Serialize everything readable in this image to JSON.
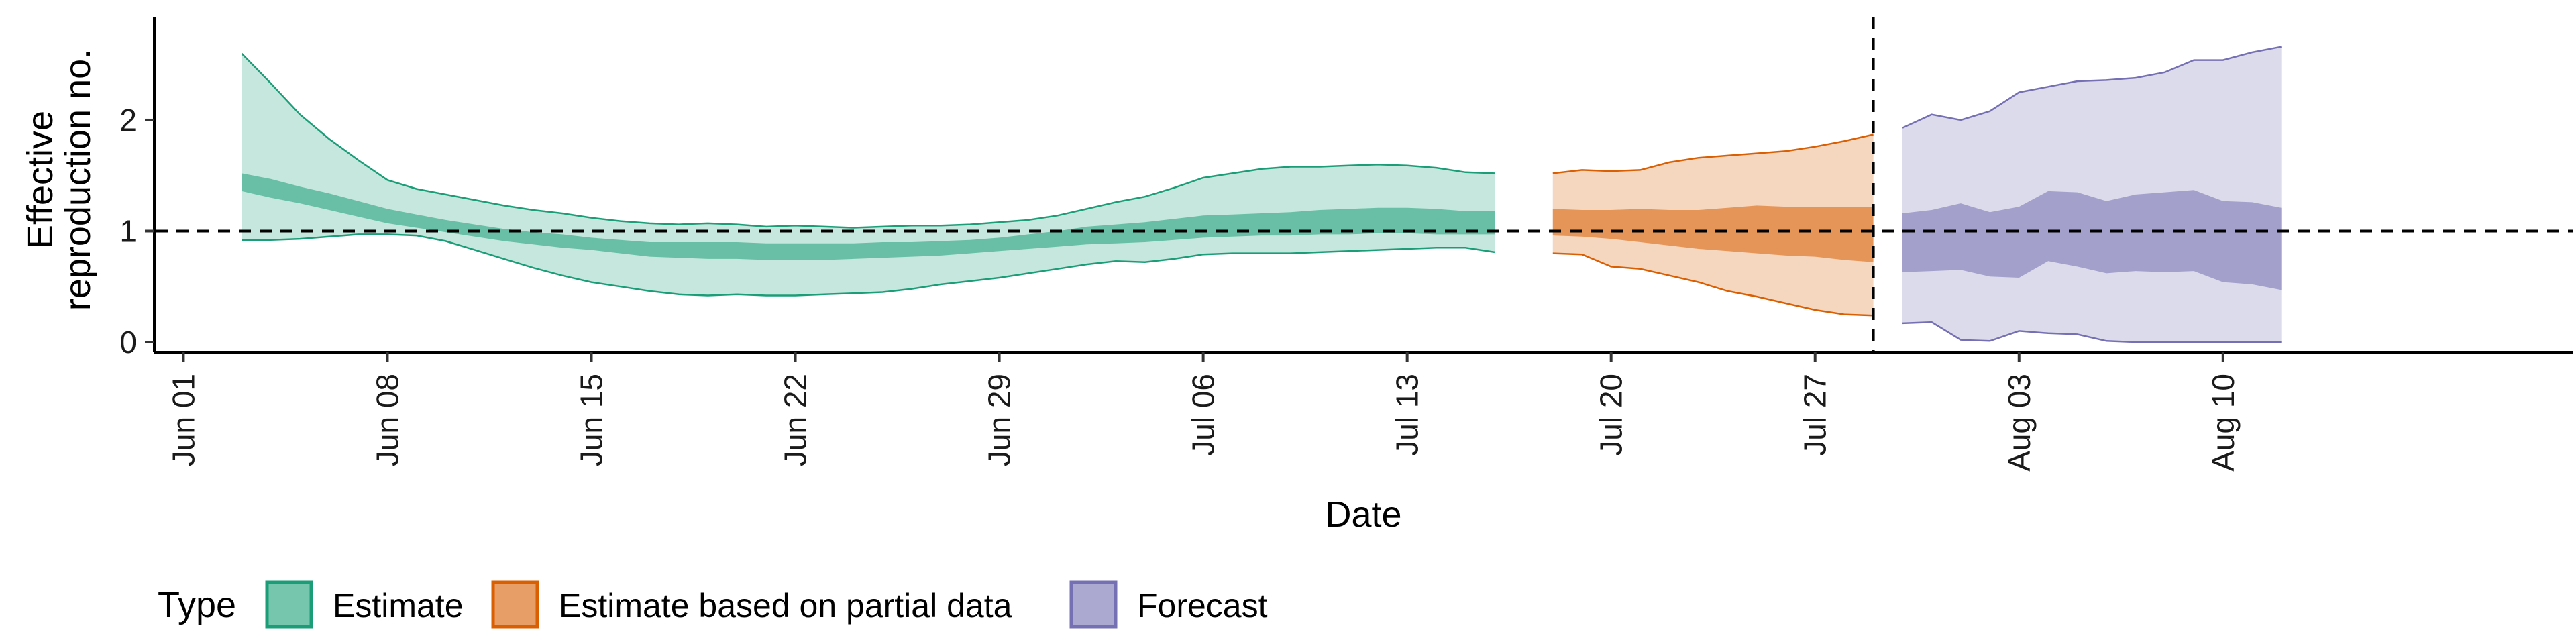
{
  "chart_data": {
    "type": "area",
    "xlabel": "Date",
    "ylabel_lines": [
      "Effective",
      "reproduction no."
    ],
    "ylim": [
      0,
      2.9
    ],
    "y_ticks": [
      0,
      1,
      2
    ],
    "x_ticks": [
      {
        "date": "2020-06-01",
        "label": "Jun 01"
      },
      {
        "date": "2020-06-08",
        "label": "Jun 08"
      },
      {
        "date": "2020-06-15",
        "label": "Jun 15"
      },
      {
        "date": "2020-06-22",
        "label": "Jun 22"
      },
      {
        "date": "2020-06-29",
        "label": "Jun 29"
      },
      {
        "date": "2020-07-06",
        "label": "Jul 06"
      },
      {
        "date": "2020-07-13",
        "label": "Jul 13"
      },
      {
        "date": "2020-07-20",
        "label": "Jul 20"
      },
      {
        "date": "2020-07-27",
        "label": "Jul 27"
      },
      {
        "date": "2020-08-03",
        "label": "Aug 03"
      },
      {
        "date": "2020-08-10",
        "label": "Aug 10"
      }
    ],
    "xlim": [
      "2020-05-31",
      "2020-08-22"
    ],
    "reference_line_y": 1,
    "forecast_start_line": "2020-07-29",
    "legend": {
      "title": "Type",
      "position": "bottom-left",
      "entries": [
        {
          "label": "Estimate",
          "color": "#1b9e77"
        },
        {
          "label": "Estimate based on partial data",
          "color": "#d95f02"
        },
        {
          "label": "Forecast",
          "color": "#7570b3"
        }
      ]
    },
    "series": [
      {
        "name": "Estimate",
        "color": "#1b9e77",
        "dates": [
          "2020-06-03",
          "2020-06-04",
          "2020-06-05",
          "2020-06-06",
          "2020-06-07",
          "2020-06-08",
          "2020-06-09",
          "2020-06-10",
          "2020-06-11",
          "2020-06-12",
          "2020-06-13",
          "2020-06-14",
          "2020-06-15",
          "2020-06-16",
          "2020-06-17",
          "2020-06-18",
          "2020-06-19",
          "2020-06-20",
          "2020-06-21",
          "2020-06-22",
          "2020-06-23",
          "2020-06-24",
          "2020-06-25",
          "2020-06-26",
          "2020-06-27",
          "2020-06-28",
          "2020-06-29",
          "2020-06-30",
          "2020-07-01",
          "2020-07-02",
          "2020-07-03",
          "2020-07-04",
          "2020-07-05",
          "2020-07-06",
          "2020-07-07",
          "2020-07-08",
          "2020-07-09",
          "2020-07-10",
          "2020-07-11",
          "2020-07-12",
          "2020-07-13",
          "2020-07-14",
          "2020-07-15",
          "2020-07-16"
        ],
        "upper90": [
          2.6,
          2.33,
          2.05,
          1.83,
          1.64,
          1.46,
          1.38,
          1.33,
          1.28,
          1.23,
          1.19,
          1.16,
          1.12,
          1.09,
          1.07,
          1.06,
          1.07,
          1.06,
          1.04,
          1.05,
          1.04,
          1.03,
          1.04,
          1.05,
          1.05,
          1.06,
          1.08,
          1.1,
          1.14,
          1.2,
          1.26,
          1.31,
          1.39,
          1.48,
          1.52,
          1.56,
          1.58,
          1.58,
          1.59,
          1.6,
          1.59,
          1.57,
          1.53,
          1.52
        ],
        "upper50": [
          1.52,
          1.47,
          1.4,
          1.34,
          1.27,
          1.2,
          1.15,
          1.1,
          1.06,
          1.02,
          0.99,
          0.97,
          0.94,
          0.92,
          0.9,
          0.9,
          0.9,
          0.9,
          0.89,
          0.89,
          0.89,
          0.89,
          0.9,
          0.9,
          0.91,
          0.92,
          0.94,
          0.97,
          1.0,
          1.04,
          1.06,
          1.08,
          1.11,
          1.14,
          1.15,
          1.16,
          1.17,
          1.19,
          1.2,
          1.21,
          1.21,
          1.2,
          1.18,
          1.18
        ],
        "lower50": [
          1.36,
          1.3,
          1.25,
          1.19,
          1.13,
          1.07,
          1.03,
          0.99,
          0.95,
          0.91,
          0.88,
          0.85,
          0.83,
          0.8,
          0.77,
          0.76,
          0.75,
          0.75,
          0.74,
          0.74,
          0.74,
          0.75,
          0.76,
          0.77,
          0.78,
          0.8,
          0.82,
          0.84,
          0.86,
          0.88,
          0.89,
          0.9,
          0.92,
          0.94,
          0.95,
          0.96,
          0.96,
          0.97,
          0.97,
          0.98,
          0.98,
          0.97,
          0.97,
          0.97
        ],
        "lower90": [
          0.92,
          0.92,
          0.93,
          0.95,
          0.97,
          0.97,
          0.96,
          0.91,
          0.83,
          0.75,
          0.67,
          0.6,
          0.54,
          0.5,
          0.46,
          0.43,
          0.42,
          0.43,
          0.42,
          0.42,
          0.43,
          0.44,
          0.45,
          0.48,
          0.52,
          0.55,
          0.58,
          0.62,
          0.66,
          0.7,
          0.73,
          0.72,
          0.75,
          0.79,
          0.8,
          0.8,
          0.8,
          0.81,
          0.82,
          0.83,
          0.84,
          0.85,
          0.85,
          0.81
        ]
      },
      {
        "name": "Estimate based on partial data",
        "color": "#d95f02",
        "dates": [
          "2020-07-18",
          "2020-07-19",
          "2020-07-20",
          "2020-07-21",
          "2020-07-22",
          "2020-07-23",
          "2020-07-24",
          "2020-07-25",
          "2020-07-26",
          "2020-07-27",
          "2020-07-28",
          "2020-07-29"
        ],
        "upper90": [
          1.52,
          1.55,
          1.54,
          1.55,
          1.62,
          1.66,
          1.68,
          1.7,
          1.72,
          1.76,
          1.81,
          1.87
        ],
        "upper50": [
          1.2,
          1.19,
          1.19,
          1.2,
          1.19,
          1.19,
          1.21,
          1.23,
          1.22,
          1.22,
          1.22,
          1.22
        ],
        "lower50": [
          0.96,
          0.95,
          0.93,
          0.9,
          0.87,
          0.84,
          0.82,
          0.8,
          0.78,
          0.77,
          0.74,
          0.72
        ],
        "lower90": [
          0.8,
          0.79,
          0.68,
          0.66,
          0.6,
          0.54,
          0.46,
          0.41,
          0.35,
          0.29,
          0.25,
          0.24
        ]
      },
      {
        "name": "Forecast",
        "color": "#7570b3",
        "dates": [
          "2020-07-30",
          "2020-07-31",
          "2020-08-01",
          "2020-08-02",
          "2020-08-03",
          "2020-08-04",
          "2020-08-05",
          "2020-08-06",
          "2020-08-07",
          "2020-08-08",
          "2020-08-09",
          "2020-08-10",
          "2020-08-11",
          "2020-08-12"
        ],
        "upper90": [
          1.93,
          2.05,
          2.0,
          2.08,
          2.25,
          2.3,
          2.35,
          2.36,
          2.38,
          2.43,
          2.54,
          2.54,
          2.61,
          2.66
        ],
        "upper50": [
          1.16,
          1.19,
          1.25,
          1.17,
          1.22,
          1.36,
          1.35,
          1.27,
          1.33,
          1.35,
          1.37,
          1.27,
          1.26,
          1.21
        ],
        "lower50": [
          0.63,
          0.64,
          0.65,
          0.59,
          0.58,
          0.73,
          0.68,
          0.62,
          0.64,
          0.63,
          0.64,
          0.54,
          0.52,
          0.47
        ],
        "lower90": [
          0.17,
          0.18,
          0.02,
          0.01,
          0.1,
          0.08,
          0.07,
          0.01,
          0.0,
          0.0,
          0.0,
          0.0,
          0.0,
          0.0
        ]
      }
    ]
  }
}
